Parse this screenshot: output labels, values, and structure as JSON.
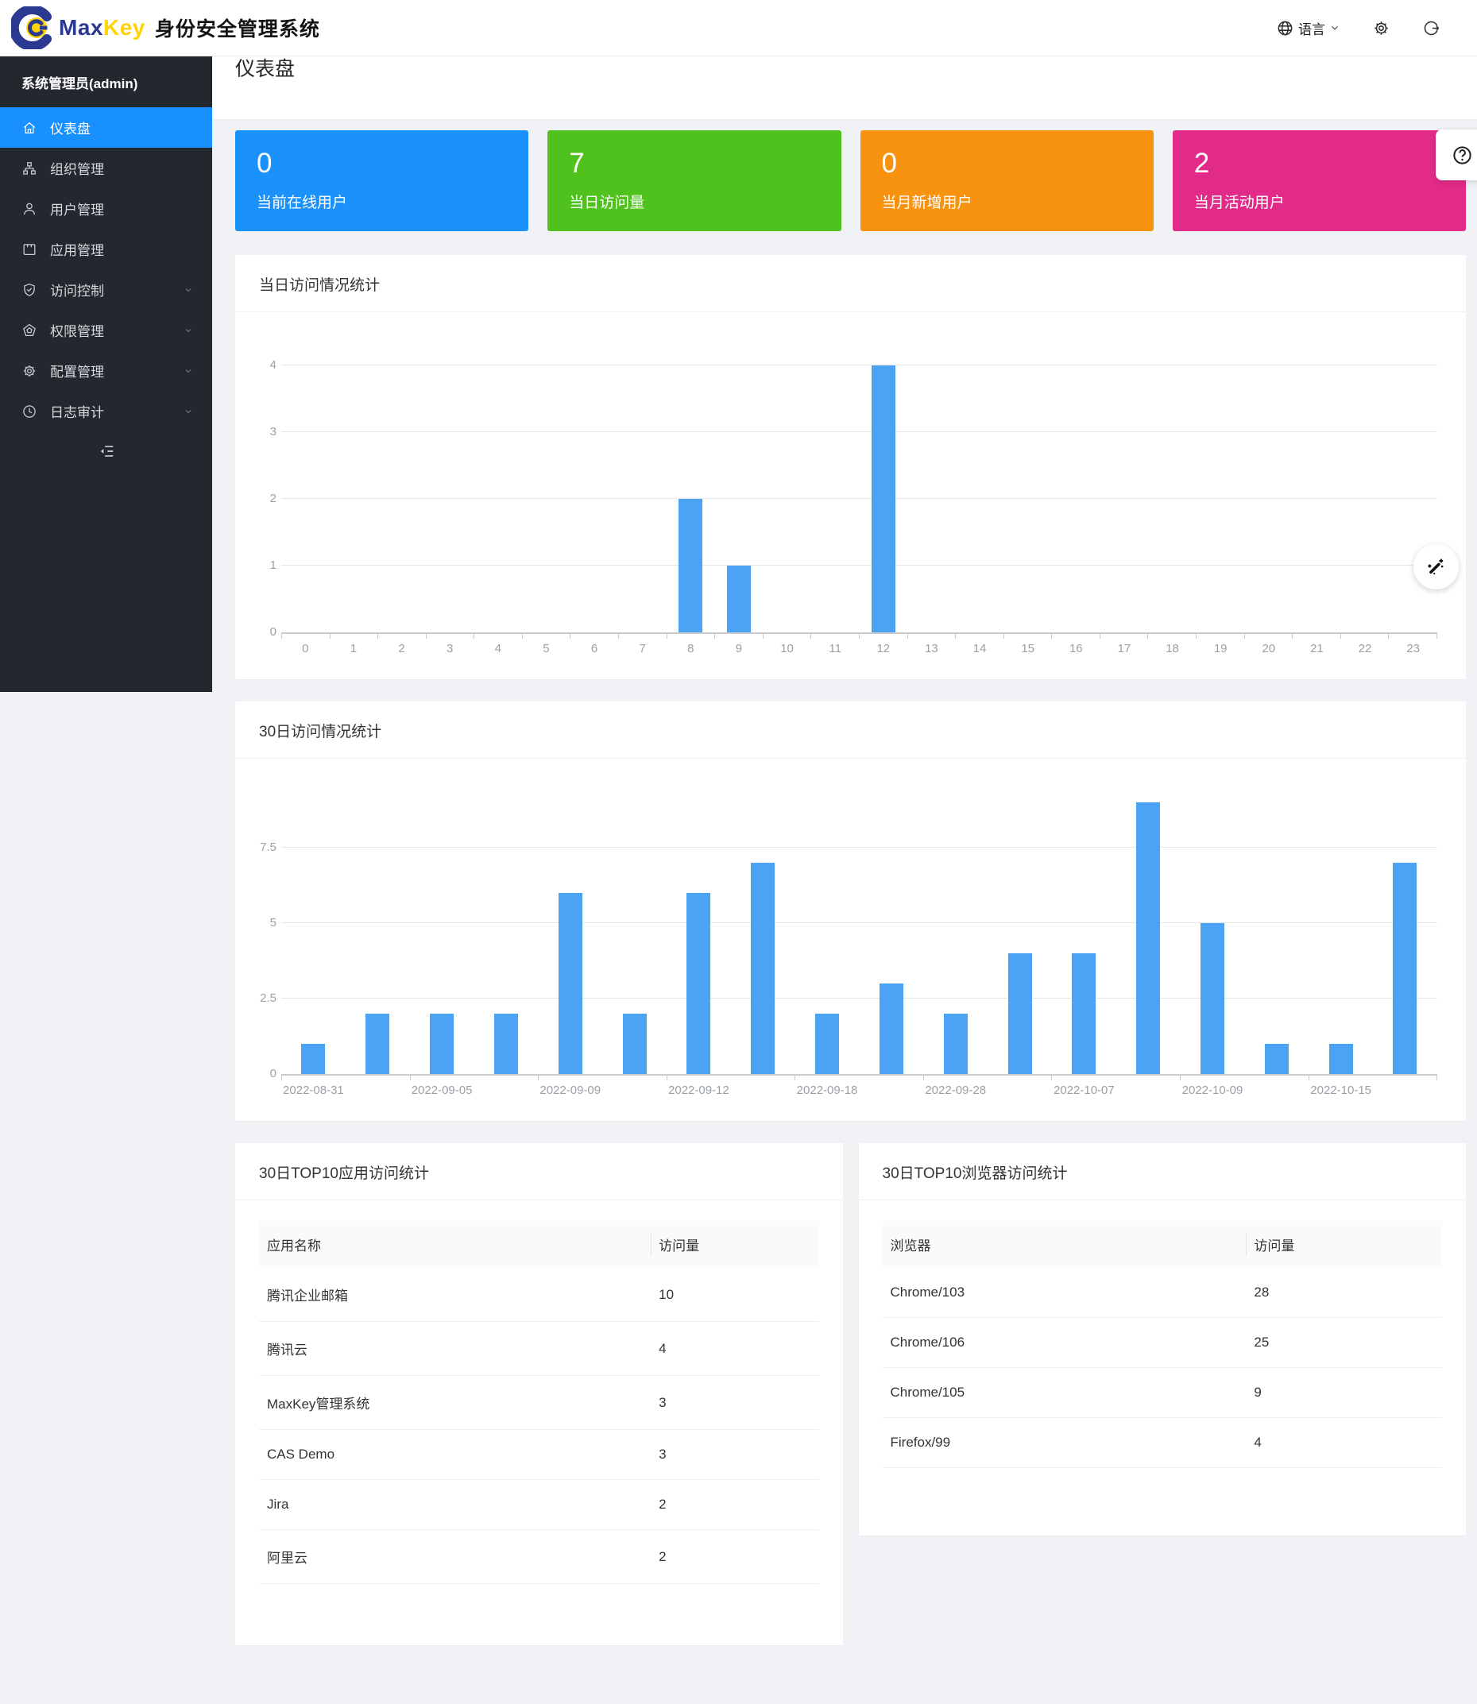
{
  "header": {
    "brand": {
      "max": "Max",
      "key": "Key",
      "title": "身份安全管理系统"
    },
    "language": {
      "label": "语言",
      "icon": "globe-icon"
    },
    "settings_icon": "gear-icon",
    "logout_icon": "logout-icon"
  },
  "sidebar": {
    "user_label": "系统管理员(admin)",
    "collapse_icon": "menu-fold-icon",
    "items": [
      {
        "name": "dashboard",
        "label": "仪表盘",
        "icon": "home-icon",
        "active": true,
        "expandable": false
      },
      {
        "name": "organizations",
        "label": "组织管理",
        "icon": "org-icon",
        "active": false,
        "expandable": false
      },
      {
        "name": "users",
        "label": "用户管理",
        "icon": "user-icon",
        "active": false,
        "expandable": false
      },
      {
        "name": "applications",
        "label": "应用管理",
        "icon": "app-icon",
        "active": false,
        "expandable": false
      },
      {
        "name": "access-control",
        "label": "访问控制",
        "icon": "shield-icon",
        "active": false,
        "expandable": true
      },
      {
        "name": "permissions",
        "label": "权限管理",
        "icon": "permission-icon",
        "active": false,
        "expandable": true
      },
      {
        "name": "configuration",
        "label": "配置管理",
        "icon": "config-gear-icon",
        "active": false,
        "expandable": true
      },
      {
        "name": "audit-log",
        "label": "日志审计",
        "icon": "clock-icon",
        "active": false,
        "expandable": true
      }
    ]
  },
  "breadcrumb": {
    "root": "home",
    "separator": "/",
    "current": "仪表盘"
  },
  "page_title": "仪表盘",
  "stat_cards": [
    {
      "name": "online-users",
      "value": "0",
      "label": "当前在线用户",
      "color": "#1b91fb"
    },
    {
      "name": "daily-visits",
      "value": "7",
      "label": "当日访问量",
      "color": "#4fc21d"
    },
    {
      "name": "monthly-new-users",
      "value": "0",
      "label": "当月新增用户",
      "color": "#f8930f"
    },
    {
      "name": "monthly-active-users",
      "value": "2",
      "label": "当月活动用户",
      "color": "#e22b88"
    }
  ],
  "chart_data": [
    {
      "type": "bar",
      "title": "当日访问情况统计",
      "xlabel": "",
      "ylabel": "",
      "categories": [
        "0",
        "1",
        "2",
        "3",
        "4",
        "5",
        "6",
        "7",
        "8",
        "9",
        "10",
        "11",
        "12",
        "13",
        "14",
        "15",
        "16",
        "17",
        "18",
        "19",
        "20",
        "21",
        "22",
        "23"
      ],
      "values": [
        0,
        0,
        0,
        0,
        0,
        0,
        0,
        0,
        2,
        1,
        0,
        0,
        4,
        0,
        0,
        0,
        0,
        0,
        0,
        0,
        0,
        0,
        0,
        0
      ],
      "yticks": [
        0,
        1,
        2,
        3,
        4
      ],
      "ylim": [
        0,
        4
      ],
      "bar_color": "#4aa4f3",
      "grid": true,
      "legend": "none"
    },
    {
      "type": "bar",
      "title": "30日访问情况统计",
      "xlabel": "",
      "ylabel": "",
      "categories": [
        "2022-08-31",
        "",
        "2022-09-05",
        "",
        "2022-09-09",
        "",
        "2022-09-12",
        "",
        "2022-09-18",
        "",
        "2022-09-28",
        "",
        "2022-10-07",
        "",
        "2022-10-09",
        "",
        "2022-10-15",
        ""
      ],
      "values": [
        1,
        2,
        2,
        2,
        6,
        2,
        6,
        7,
        2,
        3,
        2,
        4,
        4,
        9,
        5,
        1,
        1,
        7
      ],
      "yticks": [
        0,
        2.5,
        5,
        7.5
      ],
      "ylim": [
        0,
        9
      ],
      "bar_color": "#4aa4f3",
      "grid": true,
      "legend": "none"
    }
  ],
  "tables": [
    {
      "name": "apps",
      "title": "30日TOP10应用访问统计",
      "columns": [
        "应用名称",
        "访问量"
      ],
      "rows": [
        [
          "腾讯企业邮箱",
          "10"
        ],
        [
          "腾讯云",
          "4"
        ],
        [
          "MaxKey管理系统",
          "3"
        ],
        [
          "CAS Demo",
          "3"
        ],
        [
          "Jira",
          "2"
        ],
        [
          "阿里云",
          "2"
        ]
      ]
    },
    {
      "name": "browsers",
      "title": "30日TOP10浏览器访问统计",
      "columns": [
        "浏览器",
        "访问量"
      ],
      "rows": [
        [
          "Chrome/103",
          "28"
        ],
        [
          "Chrome/106",
          "25"
        ],
        [
          "Chrome/105",
          "9"
        ],
        [
          "Firefox/99",
          "4"
        ]
      ]
    }
  ],
  "floating": {
    "help_icon": "question-circle-icon",
    "tool_icon": "magic-wand-icon"
  }
}
